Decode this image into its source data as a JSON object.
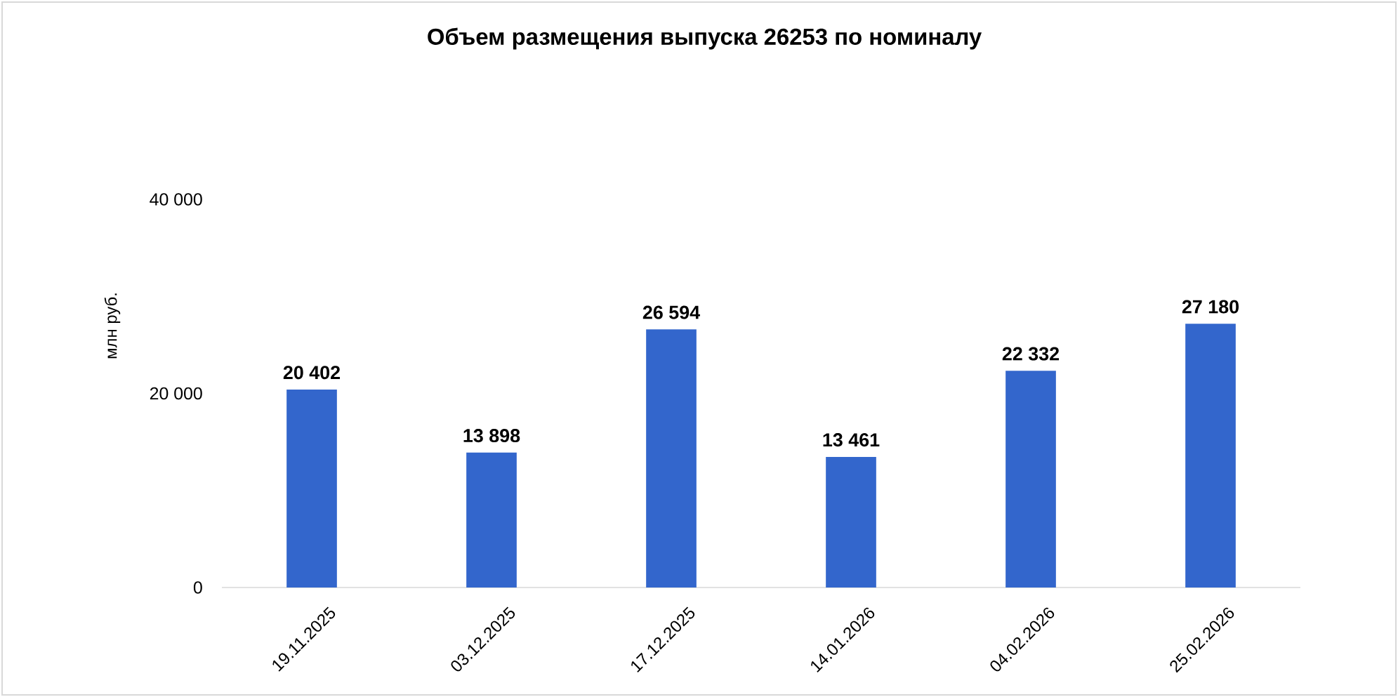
{
  "chart_data": {
    "type": "bar",
    "title": "Объем размещения выпуска 26253 по номиналу",
    "ylabel": "млн руб.",
    "categories": [
      "19.11.2025",
      "03.12.2025",
      "17.12.2025",
      "14.01.2026",
      "04.02.2026",
      "25.02.2026"
    ],
    "values": [
      20402,
      13898,
      26594,
      13461,
      22332,
      27180
    ],
    "value_labels": [
      "20 402",
      "13 898",
      "26 594",
      "13 461",
      "22 332",
      "27 180"
    ],
    "color": "#3366cc",
    "ylim": [
      0,
      40000
    ],
    "yticks": [
      0,
      {
        "value": 20000,
        "label": "20 000"
      },
      {
        "value": 40000,
        "label": "40 000"
      }
    ]
  }
}
